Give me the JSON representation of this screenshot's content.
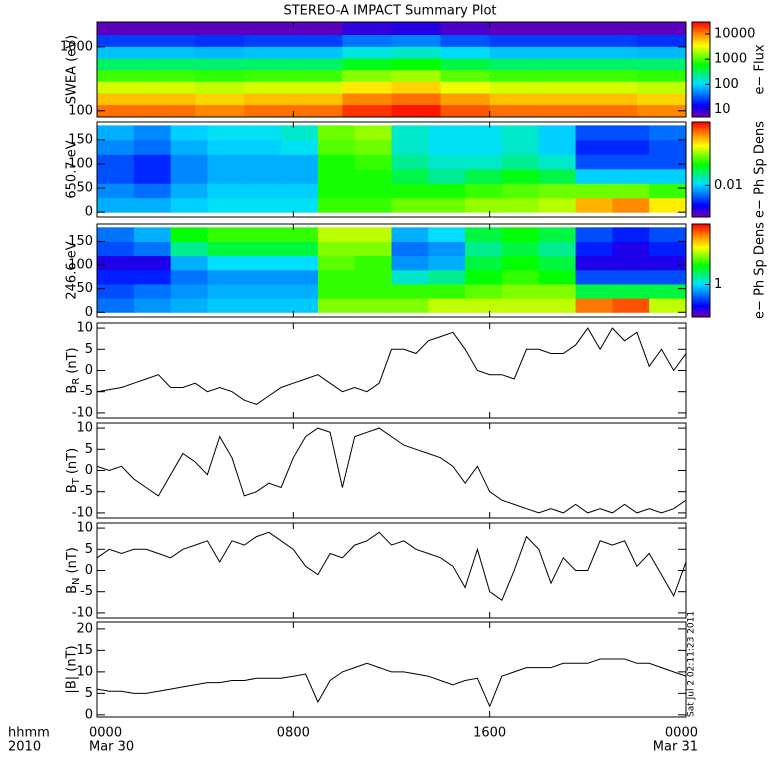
{
  "title": "STEREO-A IMPACT Summary Plot",
  "timestamp": "Sat Jul  2 02:11:23 2011",
  "chart_data": [
    {
      "type": "heatmap",
      "y_label": "SWEA (eV)",
      "log_y": true,
      "ylim": [
        80,
        2450
      ],
      "yticks": [
        100,
        1000
      ],
      "xlim": [
        0,
        24
      ],
      "x_edges": [
        0,
        2,
        4,
        6,
        8,
        10,
        12,
        14,
        16,
        18,
        20,
        22,
        24
      ],
      "y_edges": [
        80,
        125,
        190,
        290,
        440,
        670,
        1020,
        1560,
        2450
      ],
      "colormap": "rainbow",
      "log_color": true,
      "clim": [
        5,
        30000
      ],
      "cticks": [
        10,
        100,
        1000,
        10000
      ],
      "colorbar_label": "e− Flux",
      "values": [
        [
          12000,
          12000,
          10000,
          12000,
          12000,
          20000,
          25000,
          15000,
          12000,
          12000,
          12000,
          10000
        ],
        [
          6000,
          6000,
          5000,
          6000,
          6000,
          10000,
          12000,
          8000,
          6000,
          6000,
          6000,
          5000
        ],
        [
          2500,
          2500,
          2200,
          2500,
          2500,
          4000,
          5000,
          3000,
          2500,
          2500,
          2500,
          2200
        ],
        [
          900,
          900,
          800,
          900,
          900,
          1500,
          1800,
          1100,
          900,
          900,
          900,
          800
        ],
        [
          300,
          300,
          280,
          300,
          300,
          500,
          600,
          380,
          300,
          300,
          300,
          280
        ],
        [
          80,
          80,
          75,
          80,
          80,
          130,
          150,
          100,
          80,
          80,
          80,
          75
        ],
        [
          25,
          25,
          22,
          25,
          25,
          40,
          45,
          30,
          25,
          25,
          25,
          22
        ],
        [
          6,
          6,
          6,
          6,
          6,
          9,
          10,
          7,
          6,
          6,
          6,
          6
        ]
      ]
    },
    {
      "type": "heatmap",
      "y_label": "650.7 eV",
      "log_y": false,
      "ylim": [
        -10,
        187
      ],
      "yticks": [
        0,
        50,
        100,
        150
      ],
      "xlim": [
        0,
        24
      ],
      "x_edges": [
        0,
        1.5,
        3,
        4.5,
        6,
        7.5,
        9,
        10.5,
        12,
        13.5,
        15,
        16.5,
        18,
        19.5,
        21,
        22.5,
        24
      ],
      "y_edges": [
        0,
        30,
        60,
        90,
        120,
        150,
        180
      ],
      "colormap": "rainbow",
      "log_color": true,
      "clim": [
        0.001,
        1
      ],
      "cticks": [
        0.01
      ],
      "colorbar_label": "e− Ph Sp Dens",
      "values": [
        [
          0.008,
          0.008,
          0.01,
          0.012,
          0.012,
          0.012,
          0.06,
          0.06,
          0.08,
          0.08,
          0.1,
          0.1,
          0.12,
          0.3,
          0.4,
          0.2
        ],
        [
          0.006,
          0.005,
          0.008,
          0.01,
          0.01,
          0.01,
          0.05,
          0.05,
          0.05,
          0.05,
          0.06,
          0.07,
          0.08,
          0.08,
          0.08,
          0.06
        ],
        [
          0.004,
          0.003,
          0.006,
          0.008,
          0.008,
          0.008,
          0.05,
          0.05,
          0.03,
          0.02,
          0.03,
          0.04,
          0.03,
          0.01,
          0.01,
          0.01
        ],
        [
          0.004,
          0.003,
          0.006,
          0.008,
          0.008,
          0.008,
          0.05,
          0.06,
          0.02,
          0.015,
          0.015,
          0.02,
          0.015,
          0.004,
          0.004,
          0.004
        ],
        [
          0.006,
          0.005,
          0.008,
          0.01,
          0.01,
          0.012,
          0.07,
          0.08,
          0.015,
          0.012,
          0.012,
          0.015,
          0.01,
          0.003,
          0.003,
          0.004
        ],
        [
          0.008,
          0.006,
          0.01,
          0.012,
          0.012,
          0.015,
          0.08,
          0.1,
          0.015,
          0.012,
          0.012,
          0.015,
          0.01,
          0.004,
          0.004,
          0.005
        ]
      ]
    },
    {
      "type": "heatmap",
      "y_label": "246.6 eV",
      "log_y": false,
      "ylim": [
        -10,
        187
      ],
      "yticks": [
        0,
        50,
        100,
        150
      ],
      "xlim": [
        0,
        24
      ],
      "x_edges": [
        0,
        1.5,
        3,
        4.5,
        6,
        7.5,
        9,
        10.5,
        12,
        13.5,
        15,
        16.5,
        18,
        19.5,
        21,
        22.5,
        24
      ],
      "y_edges": [
        0,
        30,
        60,
        90,
        120,
        150,
        180
      ],
      "colormap": "rainbow",
      "log_color": true,
      "clim": [
        0.2,
        20
      ],
      "cticks": [
        1
      ],
      "colorbar_label": "e− Ph Sp Dens",
      "values": [
        [
          0.6,
          0.7,
          0.8,
          0.9,
          0.9,
          0.9,
          4,
          4,
          4,
          5,
          5,
          5,
          5,
          12,
          14,
          5
        ],
        [
          0.5,
          0.6,
          0.7,
          0.8,
          0.8,
          0.8,
          3,
          3,
          3,
          3,
          3.5,
          4,
          4,
          2,
          2,
          2
        ],
        [
          0.4,
          0.4,
          0.6,
          0.7,
          0.7,
          0.7,
          3,
          3,
          1.2,
          1.5,
          2.5,
          3,
          2.5,
          0.5,
          0.5,
          0.5
        ],
        [
          0.3,
          0.3,
          0.8,
          1,
          1,
          1,
          3.5,
          3,
          0.7,
          0.8,
          2,
          2.5,
          2,
          0.3,
          0.3,
          0.3
        ],
        [
          0.5,
          0.6,
          1.5,
          2,
          2,
          2,
          4,
          4,
          0.6,
          0.7,
          1.5,
          2,
          1.5,
          0.4,
          0.3,
          0.4
        ],
        [
          0.6,
          0.8,
          2.5,
          3,
          3,
          3,
          5,
          5,
          0.8,
          1,
          2,
          2.5,
          2,
          0.5,
          0.4,
          0.5
        ]
      ]
    },
    {
      "type": "line",
      "y_label": "B",
      "y_label_subscript": "R",
      "y_label_suffix": "(nT)",
      "color": "#000000",
      "ylim": [
        -11.2,
        11.2
      ],
      "yticks": [
        -10,
        -5,
        0,
        5,
        10
      ],
      "xlim": [
        0,
        24
      ],
      "x": [
        0,
        0.5,
        1,
        1.5,
        2,
        2.5,
        3,
        3.5,
        4,
        4.5,
        5,
        5.5,
        6,
        6.5,
        7,
        7.5,
        8,
        8.5,
        9,
        9.5,
        10,
        10.5,
        11,
        11.5,
        12,
        12.5,
        13,
        13.5,
        14,
        14.5,
        15,
        15.5,
        16,
        16.5,
        17,
        17.5,
        18,
        18.5,
        19,
        19.5,
        20,
        20.5,
        21,
        21.5,
        22,
        22.5,
        23,
        23.5,
        24
      ],
      "values": [
        -5,
        -4.5,
        -4,
        -3,
        -2,
        -1,
        -4,
        -4,
        -3,
        -5,
        -4,
        -5,
        -7,
        -8,
        -6,
        -4,
        -3,
        -2,
        -1,
        -3,
        -5,
        -4,
        -5,
        -3,
        5,
        5,
        4,
        7,
        8,
        9,
        5,
        0,
        -1,
        -1,
        -2,
        5,
        5,
        4,
        4,
        6,
        10,
        5,
        10,
        7,
        9,
        1,
        5,
        0,
        4
      ]
    },
    {
      "type": "line",
      "y_label": "B",
      "y_label_subscript": "T",
      "y_label_suffix": "(nT)",
      "color": "#000000",
      "ylim": [
        -11.2,
        11.2
      ],
      "yticks": [
        -10,
        -5,
        0,
        5,
        10
      ],
      "xlim": [
        0,
        24
      ],
      "x": [
        0,
        0.5,
        1,
        1.5,
        2,
        2.5,
        3,
        3.5,
        4,
        4.5,
        5,
        5.5,
        6,
        6.5,
        7,
        7.5,
        8,
        8.5,
        9,
        9.5,
        10,
        10.5,
        11,
        11.5,
        12,
        12.5,
        13,
        13.5,
        14,
        14.5,
        15,
        15.5,
        16,
        16.5,
        17,
        17.5,
        18,
        18.5,
        19,
        19.5,
        20,
        20.5,
        21,
        21.5,
        22,
        22.5,
        23,
        23.5,
        24
      ],
      "values": [
        1,
        0,
        1,
        -2,
        -4,
        -6,
        -1,
        4,
        2,
        -1,
        8,
        3,
        -6,
        -5,
        -3,
        -4,
        3,
        8,
        10,
        9,
        -4,
        8,
        9,
        10,
        8,
        6,
        5,
        4,
        3,
        1,
        -3,
        1,
        -5,
        -7,
        -8,
        -9,
        -10,
        -9,
        -10,
        -8,
        -10,
        -9,
        -10,
        -8,
        -10,
        -9,
        -10,
        -9,
        -7
      ]
    },
    {
      "type": "line",
      "y_label": "B",
      "y_label_subscript": "N",
      "y_label_suffix": "(nT)",
      "color": "#000000",
      "ylim": [
        -11.2,
        11.2
      ],
      "yticks": [
        -10,
        -5,
        0,
        5,
        10
      ],
      "xlim": [
        0,
        24
      ],
      "x": [
        0,
        0.5,
        1,
        1.5,
        2,
        2.5,
        3,
        3.5,
        4,
        4.5,
        5,
        5.5,
        6,
        6.5,
        7,
        7.5,
        8,
        8.5,
        9,
        9.5,
        10,
        10.5,
        11,
        11.5,
        12,
        12.5,
        13,
        13.5,
        14,
        14.5,
        15,
        15.5,
        16,
        16.5,
        17,
        17.5,
        18,
        18.5,
        19,
        19.5,
        20,
        20.5,
        21,
        21.5,
        22,
        22.5,
        23,
        23.5,
        24
      ],
      "values": [
        3,
        5,
        4,
        5,
        5,
        4,
        3,
        5,
        6,
        7,
        2,
        7,
        6,
        8,
        9,
        7,
        5,
        1,
        -1,
        4,
        3,
        6,
        7,
        9,
        6,
        7,
        5,
        4,
        3,
        1,
        -4,
        5,
        -5,
        -7,
        0,
        8,
        5,
        -3,
        3,
        0,
        0,
        7,
        6,
        7,
        1,
        4,
        -1,
        -6,
        2
      ]
    },
    {
      "type": "line",
      "y_label": "|B| (nT)",
      "color": "#000000",
      "ylim": [
        -0.5,
        21.6
      ],
      "yticks": [
        0,
        5,
        10,
        15,
        20
      ],
      "xlim": [
        0,
        24
      ],
      "xticks": [
        {
          "value": 0,
          "label": "0000"
        },
        {
          "value": 8,
          "label": "0800"
        },
        {
          "value": 16,
          "label": "1600"
        },
        {
          "value": 24,
          "label": "0000"
        }
      ],
      "xtick_sublabels": [
        "Mar 30",
        null,
        null,
        "Mar 31"
      ],
      "x_label": "hhmm",
      "x_sublabel": "2010",
      "x": [
        0,
        0.5,
        1,
        1.5,
        2,
        2.5,
        3,
        3.5,
        4,
        4.5,
        5,
        5.5,
        6,
        6.5,
        7,
        7.5,
        8,
        8.5,
        9,
        9.5,
        10,
        10.5,
        11,
        11.5,
        12,
        12.5,
        13,
        13.5,
        14,
        14.5,
        15,
        15.5,
        16,
        16.5,
        17,
        17.5,
        18,
        18.5,
        19,
        19.5,
        20,
        20.5,
        21,
        21.5,
        22,
        22.5,
        23,
        23.5,
        24
      ],
      "values": [
        6,
        5.5,
        5.5,
        5,
        5,
        5.5,
        6,
        6.5,
        7,
        7.5,
        7.5,
        8,
        8,
        8.5,
        8.5,
        8.5,
        9,
        9.5,
        3,
        8,
        10,
        11,
        12,
        11,
        10,
        10,
        9.5,
        9,
        8,
        7,
        8,
        8.5,
        2,
        9,
        10,
        11,
        11,
        11,
        12,
        12,
        12,
        13,
        13,
        13,
        12,
        12,
        11,
        10,
        9
      ]
    }
  ]
}
